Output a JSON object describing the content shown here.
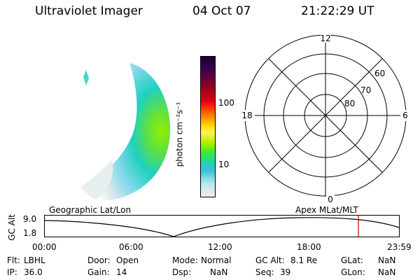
{
  "header": {
    "title": "Ultraviolet Imager",
    "date": "04 Oct 07",
    "time": "21:22:29 UT"
  },
  "colorbar": {
    "unit": "photon cm⁻²s⁻¹",
    "ticks": [
      "100",
      "10"
    ],
    "colors": [
      "#1a0030",
      "#2a0040",
      "#3a0050",
      "#5a0040",
      "#7a0030",
      "#9a0020",
      "#c00010",
      "#e00020",
      "#ff3000",
      "#ff7000",
      "#ffa800",
      "#ffe000",
      "#fff060",
      "#d0f000",
      "#90f000",
      "#40e830",
      "#20e080",
      "#20d0c0",
      "#40c0d8",
      "#80d8e8",
      "#b8e8ee",
      "#dde8ec",
      "#eef0f0"
    ]
  },
  "polar": {
    "mlt_labels": {
      "top": "12",
      "left": "18",
      "right": "6",
      "bottom": "0"
    },
    "lat_labels": [
      "60",
      "70",
      "80"
    ]
  },
  "timeline": {
    "gc_alt_label": "GC Alt",
    "y_max": "9.0",
    "y_min": "1.8",
    "left_caption": "Geographic Lat/Lon",
    "right_caption": "Apex  MLat/MLT",
    "x_ticks": [
      "00:00",
      "06:00",
      "12:00",
      "18:00",
      "23:59"
    ],
    "current_time_color": "#c00000"
  },
  "status": {
    "flt_label": "Flt:",
    "flt_value": "LBHL",
    "ip_label": "IP:",
    "ip_value": "36.0",
    "door_label": "Door:",
    "door_value": "Open",
    "gain_label": "Gain:",
    "gain_value": "14",
    "mode_label": "Mode:",
    "mode_value": "Normal",
    "dsp_label": "Dsp:",
    "dsp_value": "NaN",
    "gcalt_label": "GC Alt:",
    "gcalt_value": "8.1 Re",
    "seq_label": "Seq:",
    "seq_value": "39",
    "glat_label": "GLat:",
    "glat_value": "NaN",
    "glon_label": "GLon:",
    "glon_value": "NaN"
  }
}
